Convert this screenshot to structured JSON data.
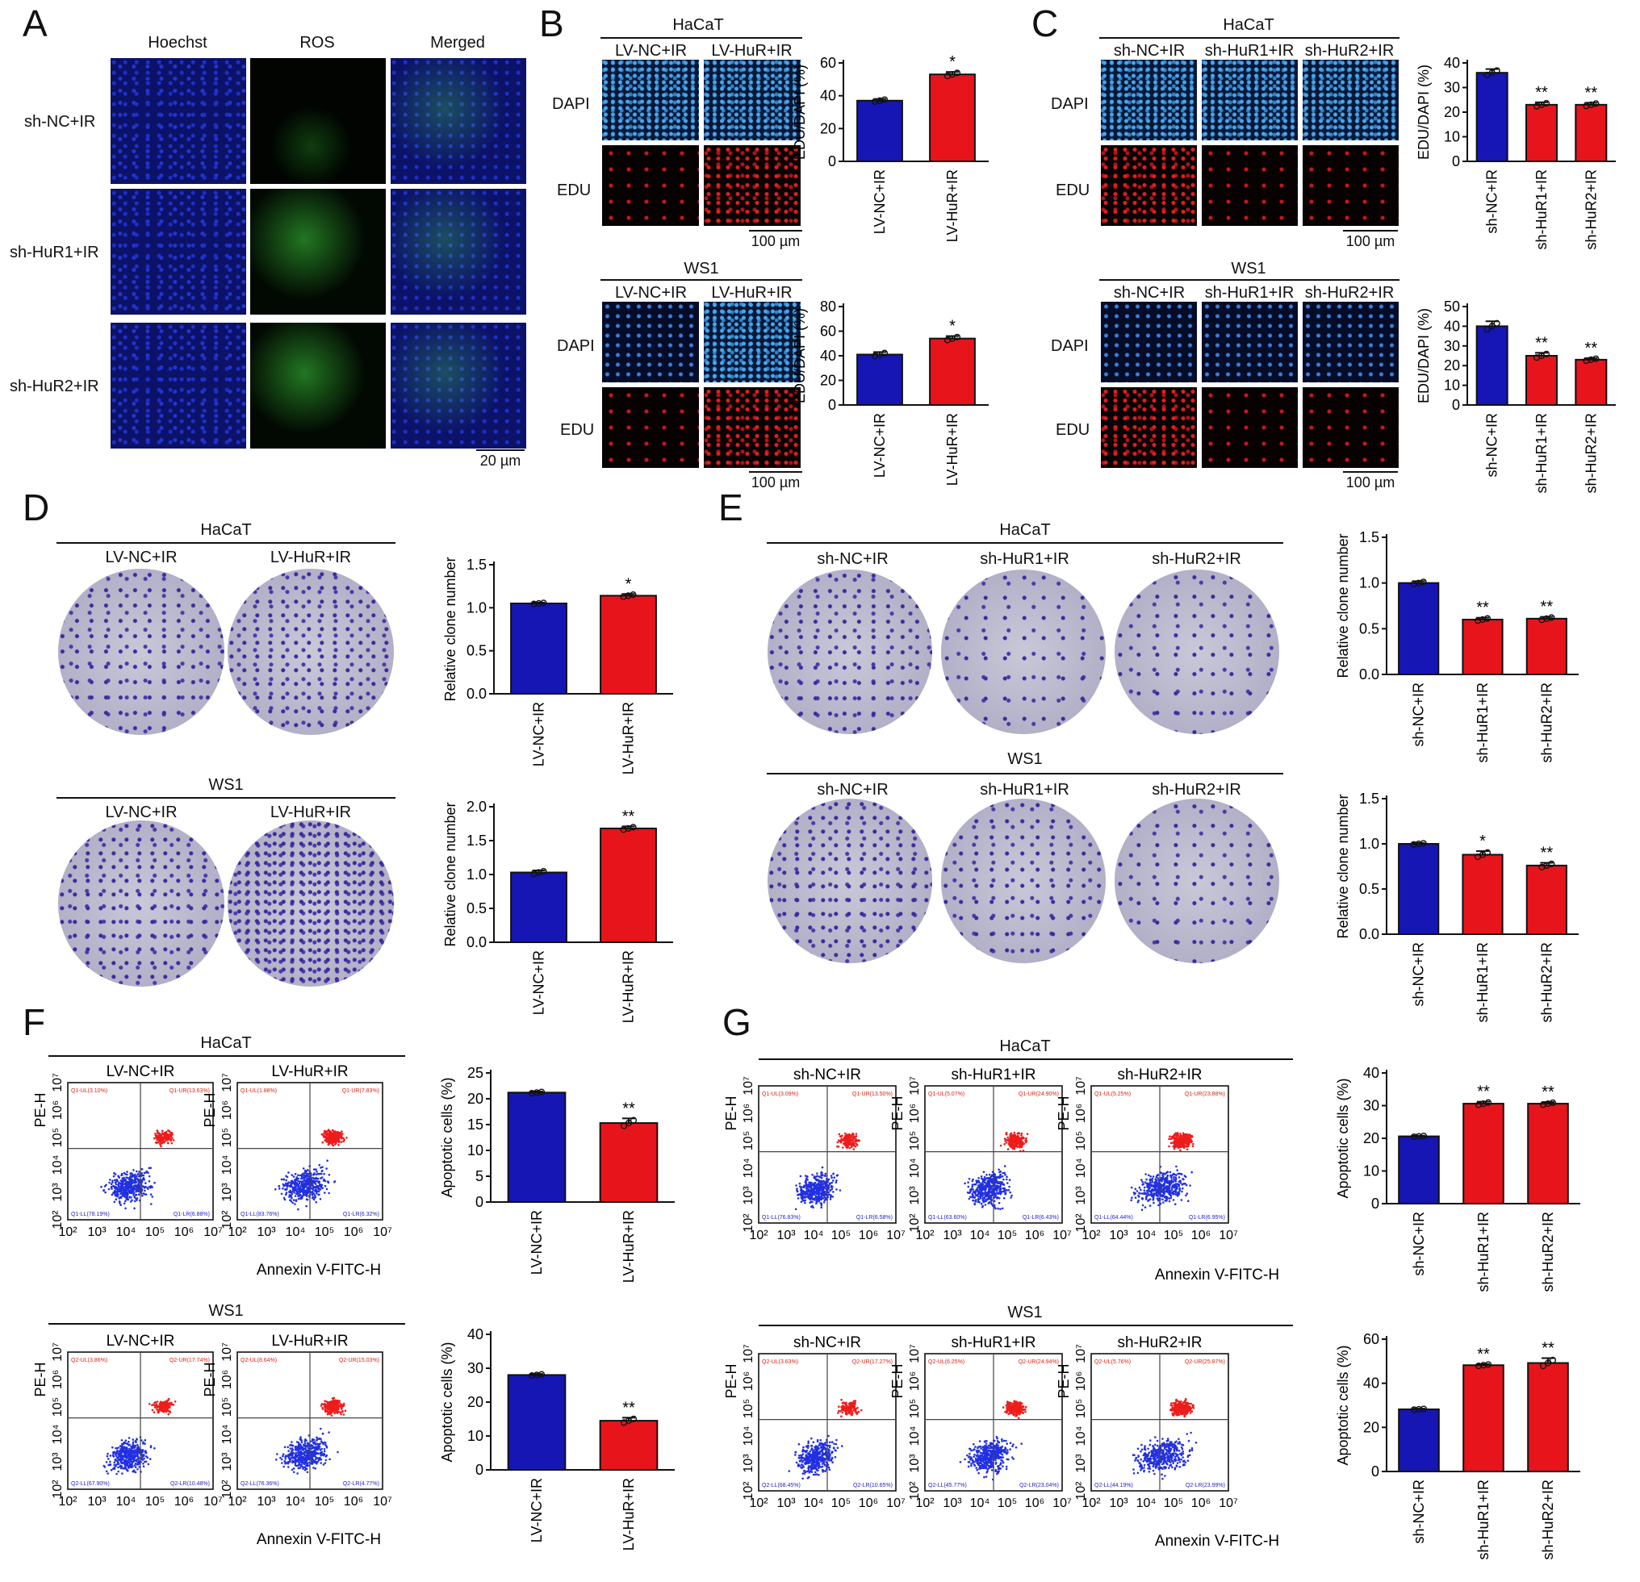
{
  "panels": {
    "A": "A",
    "B": "B",
    "C": "C",
    "D": "D",
    "E": "E",
    "F": "F",
    "G": "G"
  },
  "labels": {
    "hoechst": "Hoechst",
    "ros": "ROS",
    "merged": "Merged",
    "dapi": "DAPI",
    "edu": "EDU",
    "haCaT": "HaCaT",
    "ws1": "WS1",
    "lv_nc": "LV-NC+IR",
    "lv_hur": "LV-HuR+IR",
    "sh_nc": "sh-NC+IR",
    "sh_hur1": "sh-HuR1+IR",
    "sh_hur2": "sh-HuR2+IR",
    "scale20": "20 µm",
    "scale100": "100 µm",
    "peh": "PE-H",
    "annexin": "Annexin V-FITC-H",
    "flow_ticks": [
      "10²",
      "10³",
      "10⁴",
      "10⁵",
      "10⁶",
      "10⁷"
    ]
  },
  "colors": {
    "blue": "#1616b4",
    "red": "#e8141c",
    "dapi": "#1f6fd0",
    "edu": "#d0141c",
    "ros": "#2fd02f",
    "hoechst": "#1e2bd8",
    "dish": "#b9b7cc",
    "dot": "#3a2aa0"
  },
  "chart_data": [
    {
      "id": "B1",
      "type": "bar",
      "cell": "HaCaT",
      "categories": [
        "LV-NC+IR",
        "LV-HuR+IR"
      ],
      "values": [
        37,
        53
      ],
      "errors": [
        1,
        1.5
      ],
      "ylabel": "EDU/DAPI (%)",
      "ylim": [
        0,
        60
      ],
      "yticks": [
        0,
        20,
        40,
        60
      ],
      "sig": [
        "",
        "*"
      ]
    },
    {
      "id": "B2",
      "type": "bar",
      "cell": "WS1",
      "categories": [
        "LV-NC+IR",
        "LV-HuR+IR"
      ],
      "values": [
        41,
        54
      ],
      "errors": [
        2,
        2
      ],
      "ylabel": "EDU/DAPI (%)",
      "ylim": [
        0,
        80
      ],
      "yticks": [
        0,
        20,
        40,
        60,
        80
      ],
      "sig": [
        "",
        "*"
      ]
    },
    {
      "id": "C1",
      "type": "bar",
      "cell": "HaCaT",
      "categories": [
        "sh-NC+IR",
        "sh-HuR1+IR",
        "sh-HuR2+IR"
      ],
      "values": [
        36,
        23,
        23
      ],
      "errors": [
        1.5,
        1,
        0.8
      ],
      "ylabel": "EDU/DAPI (%)",
      "ylim": [
        0,
        40
      ],
      "yticks": [
        0,
        10,
        20,
        30,
        40
      ],
      "sig": [
        "",
        "**",
        "**"
      ]
    },
    {
      "id": "C2",
      "type": "bar",
      "cell": "WS1",
      "categories": [
        "sh-NC+IR",
        "sh-HuR1+IR",
        "sh-HuR2+IR"
      ],
      "values": [
        40,
        25,
        23
      ],
      "errors": [
        2.5,
        1.5,
        0.8
      ],
      "ylabel": "EDU/DAPI (%)",
      "ylim": [
        0,
        50
      ],
      "yticks": [
        0,
        10,
        20,
        30,
        40,
        50
      ],
      "sig": [
        "",
        "**",
        "**"
      ]
    },
    {
      "id": "D1",
      "type": "bar",
      "cell": "HaCaT",
      "categories": [
        "LV-NC+IR",
        "LV-HuR+IR"
      ],
      "values": [
        1.05,
        1.14
      ],
      "errors": [
        0.01,
        0.02
      ],
      "ylabel": "Relative clone number",
      "ylim": [
        0,
        1.5
      ],
      "yticks": [
        0.0,
        0.5,
        1.0,
        1.5
      ],
      "sig": [
        "",
        "*"
      ]
    },
    {
      "id": "D2",
      "type": "bar",
      "cell": "WS1",
      "categories": [
        "LV-NC+IR",
        "LV-HuR+IR"
      ],
      "values": [
        1.03,
        1.68
      ],
      "errors": [
        0.03,
        0.03
      ],
      "ylabel": "Relative clone number",
      "ylim": [
        0,
        2.0
      ],
      "yticks": [
        0.0,
        0.5,
        1.0,
        1.5,
        2.0
      ],
      "sig": [
        "",
        "**"
      ]
    },
    {
      "id": "E1",
      "type": "bar",
      "cell": "HaCaT",
      "categories": [
        "sh-NC+IR",
        "sh-HuR1+IR",
        "sh-HuR2+IR"
      ],
      "values": [
        1.0,
        0.6,
        0.61
      ],
      "errors": [
        0.02,
        0.02,
        0.02
      ],
      "ylabel": "Relative clone number",
      "ylim": [
        0,
        1.5
      ],
      "yticks": [
        0.0,
        0.5,
        1.0,
        1.5
      ],
      "sig": [
        "",
        "**",
        "**"
      ]
    },
    {
      "id": "E2",
      "type": "bar",
      "cell": "WS1",
      "categories": [
        "sh-NC+IR",
        "sh-HuR1+IR",
        "sh-HuR2+IR"
      ],
      "values": [
        1.0,
        0.88,
        0.76
      ],
      "errors": [
        0.01,
        0.04,
        0.03
      ],
      "ylabel": "Relative clone number",
      "ylim": [
        0,
        1.5
      ],
      "yticks": [
        0.0,
        0.5,
        1.0,
        1.5
      ],
      "sig": [
        "",
        "*",
        "**"
      ]
    },
    {
      "id": "F1",
      "type": "bar",
      "cell": "HaCaT",
      "categories": [
        "LV-NC+IR",
        "LV-HuR+IR"
      ],
      "values": [
        21.2,
        15.3
      ],
      "errors": [
        0.2,
        0.9
      ],
      "ylabel": "Apoptotic cells (%)",
      "ylim": [
        0,
        25
      ],
      "yticks": [
        0,
        5,
        10,
        15,
        20,
        25
      ],
      "sig": [
        "",
        "**"
      ]
    },
    {
      "id": "F2",
      "type": "bar",
      "cell": "WS1",
      "categories": [
        "LV-NC+IR",
        "LV-HuR+IR"
      ],
      "values": [
        28,
        14.5
      ],
      "errors": [
        0.3,
        0.9
      ],
      "ylabel": "Apoptotic cells (%)",
      "ylim": [
        0,
        40
      ],
      "yticks": [
        0,
        10,
        20,
        30,
        40
      ],
      "sig": [
        "",
        "**"
      ]
    },
    {
      "id": "G1",
      "type": "bar",
      "cell": "HaCaT",
      "categories": [
        "sh-NC+IR",
        "sh-HuR1+IR",
        "sh-HuR2+IR"
      ],
      "values": [
        20.6,
        30.6,
        30.6
      ],
      "errors": [
        0.2,
        0.6,
        0.5
      ],
      "ylabel": "Apoptotic cells (%)",
      "ylim": [
        0,
        40
      ],
      "yticks": [
        0,
        10,
        20,
        30,
        40
      ],
      "sig": [
        "",
        "**",
        "**"
      ]
    },
    {
      "id": "G2",
      "type": "bar",
      "cell": "WS1",
      "categories": [
        "sh-NC+IR",
        "sh-HuR1+IR",
        "sh-HuR2+IR"
      ],
      "values": [
        28.2,
        48.2,
        49.2
      ],
      "errors": [
        0.3,
        0.5,
        2.2
      ],
      "ylabel": "Apoptotic cells (%)",
      "ylim": [
        0,
        60
      ],
      "yticks": [
        0,
        20,
        40,
        60
      ],
      "sig": [
        "",
        "**",
        "**"
      ]
    }
  ],
  "flow": {
    "F_hacat": [
      {
        "ul": "Q1-UL(3.10%)",
        "ur": "Q1-UR(13.63%)",
        "ll": "Q1-LL(78.19%)",
        "lr": "Q1-LR(6.88%)"
      },
      {
        "ul": "Q1-UL(1.88%)",
        "ur": "Q1-UR(7.83%)",
        "ll": "Q1-LL(83.76%)",
        "lr": "Q1-LR(6.32%)"
      }
    ],
    "F_ws1": [
      {
        "ul": "Q2-UL(3.86%)",
        "ur": "Q2-UR(17.74%)",
        "ll": "Q2-LL(67.90%)",
        "lr": "Q2-LR(10.48%)"
      },
      {
        "ul": "Q2-UL(8.64%)",
        "ur": "Q2-UR(15.03%)",
        "ll": "Q2-LL(76.36%)",
        "lr": "Q2-LR(4.77%)"
      }
    ],
    "G_hacat": [
      {
        "ul": "Q1-UL(3.09%)",
        "ur": "Q1-UR(13.50%)",
        "ll": "Q1-LL(76.83%)",
        "lr": "Q1-LR(6.58%)"
      },
      {
        "ul": "Q1-UL(5.07%)",
        "ur": "Q1-UR(24.90%)",
        "ll": "Q1-LL(63.60%)",
        "lr": "Q1-LR(6.43%)"
      },
      {
        "ul": "Q1-UL(5.25%)",
        "ur": "Q1-UR(23.88%)",
        "ll": "Q1-LL(64.44%)",
        "lr": "Q1-LR(6.95%)"
      }
    ],
    "G_ws1": [
      {
        "ul": "Q2-UL(3.63%)",
        "ur": "Q2-UR(17.27%)",
        "ll": "Q2-LL(68.45%)",
        "lr": "Q2-LR(10.65%)"
      },
      {
        "ul": "Q2-UL(6.25%)",
        "ur": "Q2-UR(24.94%)",
        "ll": "Q2-LL(45.77%)",
        "lr": "Q2-LR(23.04%)"
      },
      {
        "ul": "Q2-UL(5.76%)",
        "ur": "Q2-UR(25.87%)",
        "ll": "Q2-LL(44.19%)",
        "lr": "Q2-LR(23.99%)"
      }
    ]
  }
}
